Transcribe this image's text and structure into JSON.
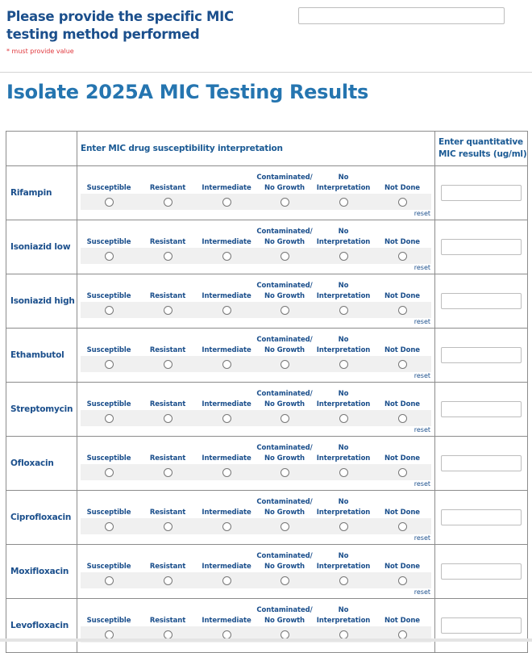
{
  "question": {
    "label": "Please provide the specific MIC testing method performed",
    "required_note": "* must provide value",
    "value": ""
  },
  "section_title": "Isolate 2025A MIC Testing Results",
  "table": {
    "header_interpretation": "Enter MIC drug susceptibility interpretation",
    "header_quantitative": "Enter quantitative MIC results (ug/ml)",
    "options": [
      "Susceptible",
      "Resistant",
      "Intermediate",
      "Contaminated/ No Growth",
      "No Interpretation",
      "Not Done"
    ],
    "reset_label": "reset",
    "drugs": [
      "Rifampin",
      "Isoniazid low",
      "Isoniazid high",
      "Ethambutol",
      "Streptomycin",
      "Ofloxacin",
      "Ciprofloxacin",
      "Moxifloxacin",
      "Levofloxacin"
    ]
  }
}
